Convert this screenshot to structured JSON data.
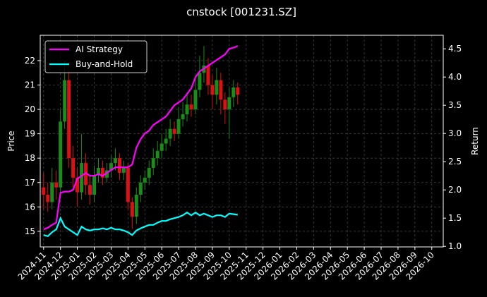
{
  "chart_data": {
    "type": "candlestick",
    "title": "cnstock [001231.SZ]",
    "y_label": "Price",
    "y2_label": "Return",
    "up_color": "#1a8c1a",
    "down_color": "#dd1111",
    "grid": true,
    "legend": "upper left",
    "x": [
      0,
      0.25,
      0.5,
      0.75,
      1,
      1.25,
      1.5,
      1.75,
      2,
      2.25,
      2.5,
      2.75,
      3,
      3.25,
      3.5,
      3.75,
      4,
      4.25,
      4.5,
      4.75,
      5,
      5.25,
      5.5,
      5.75,
      6,
      6.25,
      6.5,
      6.75,
      7,
      7.25,
      7.5,
      7.75,
      8,
      8.25,
      8.5,
      8.75,
      9,
      9.25,
      9.5,
      9.75,
      10,
      10.25,
      10.5,
      10.75,
      11,
      11.25,
      11.5
    ],
    "open": [
      16.8,
      16.5,
      16.2,
      17.0,
      16.8,
      19.5,
      21.2,
      18.0,
      17.2,
      16.6,
      17.8,
      16.9,
      16.5,
      17.3,
      17.6,
      17.2,
      17.5,
      17.8,
      18.0,
      17.4,
      17.6,
      16.2,
      15.6,
      16.5,
      17.0,
      17.2,
      17.6,
      18.0,
      18.3,
      18.6,
      18.8,
      19.2,
      19.0,
      19.6,
      19.8,
      20.2,
      20.0,
      20.8,
      21.5,
      21.8,
      21.0,
      20.6,
      21.2,
      20.4,
      20.0,
      20.5,
      20.9
    ],
    "high": [
      17.4,
      17.0,
      17.6,
      17.5,
      20.0,
      22.0,
      21.6,
      18.5,
      17.6,
      19.0,
      18.2,
      17.3,
      17.7,
      18.0,
      17.9,
      17.8,
      18.1,
      18.4,
      18.2,
      17.9,
      17.8,
      16.4,
      16.8,
      17.3,
      17.5,
      17.9,
      18.4,
      18.7,
      19.0,
      19.2,
      19.6,
      19.5,
      20.1,
      20.3,
      20.7,
      20.6,
      21.3,
      22.2,
      22.6,
      22.1,
      21.4,
      21.7,
      21.5,
      20.7,
      20.9,
      21.2,
      21.1
    ],
    "low": [
      15.9,
      15.8,
      15.9,
      16.3,
      16.5,
      19.2,
      17.6,
      16.8,
      16.0,
      16.3,
      16.5,
      16.1,
      16.2,
      17.0,
      16.9,
      17.0,
      17.2,
      17.5,
      17.1,
      17.1,
      15.9,
      15.1,
      15.3,
      16.2,
      16.7,
      16.9,
      17.3,
      17.7,
      18.0,
      18.3,
      18.5,
      18.7,
      18.8,
      19.3,
      19.5,
      19.7,
      19.8,
      20.5,
      21.1,
      20.6,
      20.0,
      20.2,
      19.8,
      19.4,
      18.8,
      20.1,
      20.2
    ],
    "close": [
      16.5,
      16.2,
      17.0,
      16.8,
      19.5,
      21.2,
      18.0,
      17.2,
      16.6,
      17.8,
      16.9,
      16.5,
      17.3,
      17.6,
      17.2,
      17.5,
      17.8,
      18.0,
      17.4,
      17.6,
      16.2,
      15.6,
      16.5,
      17.0,
      17.2,
      17.6,
      18.0,
      18.3,
      18.6,
      18.8,
      19.2,
      19.0,
      19.6,
      19.8,
      20.2,
      20.0,
      20.8,
      21.5,
      21.8,
      21.0,
      20.6,
      21.2,
      20.4,
      20.0,
      20.5,
      20.9,
      20.6
    ],
    "series": [
      {
        "name": "AI Strategy",
        "color": "#ff00ff",
        "axis": "y2",
        "values": [
          1.3,
          1.33,
          1.38,
          1.42,
          1.95,
          1.97,
          1.97,
          2.0,
          2.2,
          2.25,
          2.3,
          2.25,
          2.25,
          2.28,
          2.25,
          2.3,
          2.35,
          2.4,
          2.4,
          2.4,
          2.4,
          2.45,
          2.75,
          2.9,
          3.0,
          3.05,
          3.15,
          3.2,
          3.25,
          3.3,
          3.4,
          3.5,
          3.55,
          3.6,
          3.7,
          3.8,
          4.0,
          4.1,
          4.15,
          4.2,
          4.25,
          4.3,
          4.35,
          4.4,
          4.5,
          4.52,
          4.55
        ]
      },
      {
        "name": "Buy-and-Hold",
        "color": "#00ffff",
        "axis": "y2",
        "values": [
          1.2,
          1.18,
          1.25,
          1.3,
          1.5,
          1.35,
          1.3,
          1.25,
          1.2,
          1.35,
          1.3,
          1.28,
          1.3,
          1.3,
          1.32,
          1.3,
          1.33,
          1.3,
          1.3,
          1.28,
          1.25,
          1.2,
          1.28,
          1.32,
          1.35,
          1.38,
          1.38,
          1.42,
          1.45,
          1.45,
          1.48,
          1.5,
          1.52,
          1.55,
          1.6,
          1.55,
          1.6,
          1.55,
          1.58,
          1.55,
          1.52,
          1.55,
          1.55,
          1.52,
          1.58,
          1.57,
          1.56
        ]
      }
    ],
    "xlim": [
      -0.2,
      23.68
    ],
    "xticks": [
      {
        "value": 0,
        "label": "2024-11"
      },
      {
        "value": 1,
        "label": "2024-12"
      },
      {
        "value": 2,
        "label": "2025-01"
      },
      {
        "value": 3,
        "label": "2025-02"
      },
      {
        "value": 4,
        "label": "2025-03"
      },
      {
        "value": 5,
        "label": "2025-04"
      },
      {
        "value": 6,
        "label": "2025-05"
      },
      {
        "value": 7,
        "label": "2025-06"
      },
      {
        "value": 8,
        "label": "2025-07"
      },
      {
        "value": 9,
        "label": "2025-08"
      },
      {
        "value": 10,
        "label": "2025-09"
      },
      {
        "value": 11,
        "label": "2025-10"
      },
      {
        "value": 12,
        "label": "2025-11"
      },
      {
        "value": 13,
        "label": "2025-12"
      },
      {
        "value": 14,
        "label": "2026-01"
      },
      {
        "value": 15,
        "label": "2026-02"
      },
      {
        "value": 16,
        "label": "2026-03"
      },
      {
        "value": 17,
        "label": "2026-04"
      },
      {
        "value": 18,
        "label": "2026-05"
      },
      {
        "value": 19,
        "label": "2026-06"
      },
      {
        "value": 20,
        "label": "2026-07"
      },
      {
        "value": 21,
        "label": "2026-08"
      },
      {
        "value": 22,
        "label": "2026-09"
      },
      {
        "value": 23,
        "label": "2026-10"
      }
    ],
    "ylim": [
      14.36,
      23.04
    ],
    "yticks": [
      15,
      16,
      17,
      18,
      19,
      20,
      21,
      22
    ],
    "y2lim": [
      0.99,
      4.74
    ],
    "y2ticks": [
      {
        "value": 1,
        "label": "1.0"
      },
      {
        "value": 1.5,
        "label": "1.5"
      },
      {
        "value": 2,
        "label": "2.0"
      },
      {
        "value": 2.5,
        "label": "2.5"
      },
      {
        "value": 3,
        "label": "3.0"
      },
      {
        "value": 3.5,
        "label": "3.5"
      },
      {
        "value": 4,
        "label": "4.0"
      },
      {
        "value": 4.5,
        "label": "4.5"
      }
    ]
  }
}
